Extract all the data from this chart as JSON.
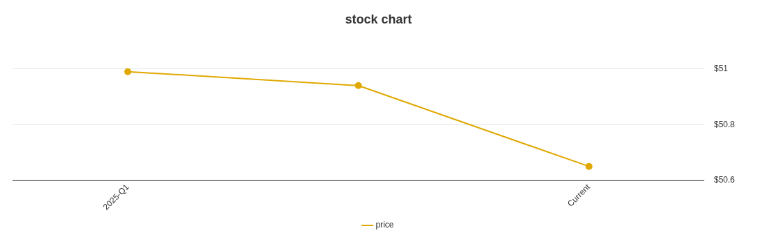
{
  "chart_data": {
    "type": "line",
    "title": "stock chart",
    "categories": [
      "2025-Q1",
      null,
      "Current"
    ],
    "series": [
      {
        "name": "price",
        "color": "#e0a800",
        "values": [
          50.99,
          50.94,
          50.65
        ]
      }
    ],
    "ylim": [
      50.6,
      51
    ],
    "yticks": [
      {
        "value": 50.6,
        "label": "$50.6"
      },
      {
        "value": 50.8,
        "label": "$50.8"
      },
      {
        "value": 51,
        "label": "$51"
      }
    ],
    "grid": "y",
    "legend": "bottom",
    "marker": "circle",
    "line_style": "solid"
  }
}
